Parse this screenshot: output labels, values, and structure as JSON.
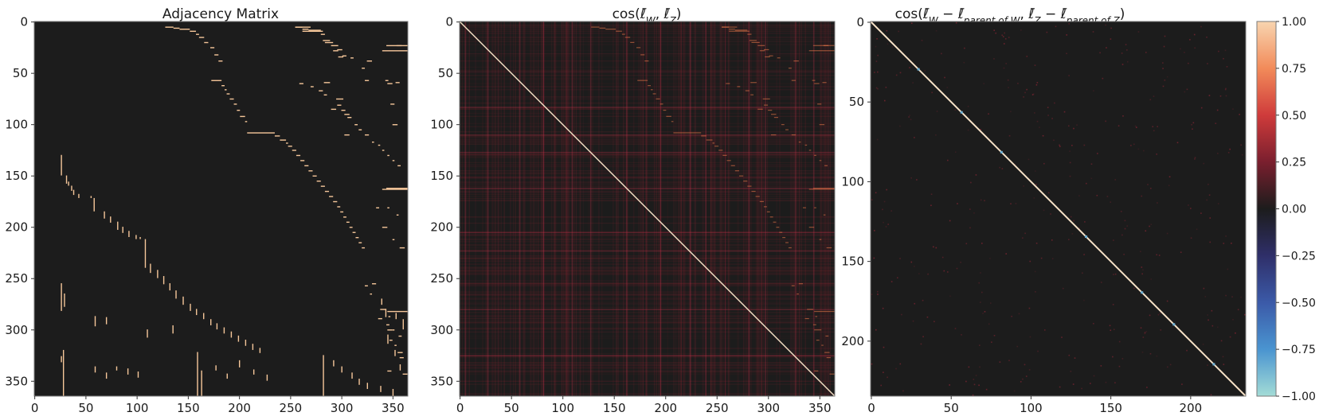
{
  "colors": {
    "background": "#1c1c1c",
    "adjacency_on": "#f6c79a",
    "diagonal": "#f8e3c8",
    "frame": "#7a7a7a"
  },
  "chart_data": [
    {
      "type": "heatmap",
      "title": "Adjacency Matrix",
      "size": 365,
      "x_ticks": [
        0,
        50,
        100,
        150,
        200,
        250,
        300,
        350
      ],
      "y_ticks": [
        0,
        50,
        100,
        150,
        200,
        250,
        300,
        350
      ],
      "values_description": "binary (0/1) adjacency matrix, mostly zeros with staircase bands of ones",
      "segments": [
        [
          5,
          128,
          136
        ],
        [
          6,
          136,
          142
        ],
        [
          7,
          142,
          152
        ],
        [
          9,
          152,
          158
        ],
        [
          12,
          158,
          161
        ],
        [
          15,
          161,
          166
        ],
        [
          20,
          166,
          170
        ],
        [
          25,
          172,
          176
        ],
        [
          32,
          176,
          180
        ],
        [
          38,
          180,
          184
        ],
        [
          5,
          255,
          262
        ],
        [
          7,
          262,
          268
        ],
        [
          8,
          268,
          280
        ],
        [
          12,
          280,
          284
        ],
        [
          20,
          284,
          292
        ],
        [
          28,
          292,
          297
        ],
        [
          34,
          297,
          302
        ],
        [
          57,
          173,
          183
        ],
        [
          62,
          183,
          186
        ],
        [
          66,
          186,
          188
        ],
        [
          70,
          188,
          191
        ],
        [
          75,
          191,
          195
        ],
        [
          80,
          195,
          198
        ],
        [
          86,
          198,
          201
        ],
        [
          92,
          201,
          206
        ],
        [
          97,
          206,
          208
        ],
        [
          108,
          208,
          235
        ],
        [
          111,
          235,
          240
        ],
        [
          115,
          240,
          246
        ],
        [
          118,
          246,
          248
        ],
        [
          121,
          248,
          252
        ],
        [
          125,
          252,
          256
        ],
        [
          130,
          256,
          260
        ],
        [
          135,
          260,
          264
        ],
        [
          140,
          264,
          268
        ],
        [
          145,
          268,
          272
        ],
        [
          150,
          272,
          276
        ],
        [
          155,
          276,
          280
        ],
        [
          160,
          280,
          284
        ],
        [
          165,
          284,
          288
        ],
        [
          170,
          288,
          292
        ],
        [
          175,
          292,
          296
        ],
        [
          180,
          296,
          299
        ],
        [
          185,
          299,
          302
        ],
        [
          190,
          302,
          305
        ],
        [
          195,
          305,
          308
        ],
        [
          200,
          308,
          311
        ],
        [
          205,
          311,
          314
        ],
        [
          210,
          314,
          317
        ],
        [
          215,
          317,
          320
        ],
        [
          220,
          320,
          323
        ],
        [
          59,
          283,
          289
        ],
        [
          75,
          295,
          302
        ],
        [
          85,
          290,
          295
        ],
        [
          90,
          303,
          308
        ],
        [
          110,
          303,
          308
        ],
        [
          28,
          340,
          365
        ],
        [
          163,
          340,
          365
        ],
        [
          60,
          345,
          350
        ],
        [
          80,
          348,
          352
        ],
        [
          100,
          350,
          355
        ],
        [
          255,
          330,
          334
        ],
        [
          280,
          338,
          344
        ],
        [
          300,
          345,
          350
        ],
        [
          322,
          355,
          360
        ]
      ],
      "verticals": [
        [
          26,
          130,
          150
        ],
        [
          31,
          150,
          158
        ],
        [
          33,
          156,
          160
        ],
        [
          36,
          160,
          165
        ],
        [
          38,
          164,
          169
        ],
        [
          43,
          168,
          172
        ],
        [
          55,
          170,
          172
        ],
        [
          58,
          172,
          185
        ],
        [
          68,
          185,
          192
        ],
        [
          74,
          190,
          196
        ],
        [
          81,
          195,
          203
        ],
        [
          86,
          200,
          206
        ],
        [
          92,
          204,
          210
        ],
        [
          99,
          208,
          212
        ],
        [
          103,
          210,
          212
        ],
        [
          108,
          212,
          240
        ],
        [
          113,
          236,
          245
        ],
        [
          120,
          242,
          250
        ],
        [
          126,
          248,
          256
        ],
        [
          132,
          255,
          262
        ],
        [
          138,
          262,
          270
        ],
        [
          145,
          268,
          276
        ],
        [
          152,
          275,
          282
        ],
        [
          158,
          280,
          286
        ],
        [
          165,
          284,
          290
        ],
        [
          172,
          290,
          296
        ],
        [
          178,
          294,
          300
        ],
        [
          185,
          298,
          304
        ],
        [
          192,
          302,
          308
        ],
        [
          199,
          306,
          312
        ],
        [
          206,
          310,
          316
        ],
        [
          213,
          314,
          320
        ],
        [
          220,
          318,
          323
        ],
        [
          26,
          255,
          282
        ],
        [
          29,
          265,
          278
        ],
        [
          59,
          287,
          297
        ],
        [
          70,
          288,
          295
        ],
        [
          110,
          300,
          308
        ],
        [
          135,
          296,
          304
        ],
        [
          28,
          320,
          365
        ],
        [
          26,
          326,
          332
        ],
        [
          59,
          336,
          342
        ],
        [
          70,
          342,
          348
        ],
        [
          80,
          336,
          340
        ],
        [
          91,
          338,
          344
        ],
        [
          101,
          341,
          347
        ],
        [
          159,
          322,
          365
        ],
        [
          163,
          340,
          365
        ],
        [
          177,
          335,
          340
        ],
        [
          188,
          343,
          348
        ],
        [
          200,
          330,
          337
        ],
        [
          214,
          339,
          344
        ],
        [
          227,
          344,
          350
        ],
        [
          282,
          325,
          365
        ],
        [
          292,
          330,
          336
        ],
        [
          300,
          336,
          342
        ],
        [
          310,
          342,
          348
        ],
        [
          317,
          348,
          354
        ],
        [
          325,
          352,
          358
        ],
        [
          338,
          355,
          361
        ],
        [
          350,
          358,
          365
        ],
        [
          360,
          290,
          300
        ],
        [
          345,
          305,
          314
        ],
        [
          352,
          320,
          326
        ],
        [
          357,
          334,
          340
        ],
        [
          343,
          280,
          288
        ],
        [
          353,
          284,
          290
        ],
        [
          339,
          270,
          276
        ]
      ],
      "right_block": [
        [
          255,
          5,
          270
        ],
        [
          262,
          9,
          282
        ],
        [
          282,
          18,
          289
        ],
        [
          290,
          23,
          297
        ],
        [
          296,
          27,
          301
        ],
        [
          301,
          33,
          305
        ],
        [
          309,
          35,
          312
        ],
        [
          344,
          23,
          365
        ],
        [
          354,
          23,
          359
        ],
        [
          325,
          38,
          330
        ],
        [
          320,
          45,
          323
        ],
        [
          323,
          57,
          327
        ],
        [
          343,
          57,
          346
        ],
        [
          353,
          59,
          357
        ],
        [
          259,
          60,
          263
        ],
        [
          270,
          63,
          273
        ],
        [
          278,
          67,
          282
        ],
        [
          283,
          71,
          286
        ],
        [
          296,
          81,
          300
        ],
        [
          300,
          86,
          304
        ],
        [
          306,
          93,
          310
        ],
        [
          313,
          100,
          316
        ],
        [
          317,
          105,
          320
        ],
        [
          323,
          110,
          327
        ],
        [
          330,
          117,
          332
        ],
        [
          336,
          120,
          338
        ],
        [
          340,
          125,
          342
        ],
        [
          345,
          130,
          347
        ],
        [
          350,
          135,
          352
        ],
        [
          355,
          140,
          358
        ],
        [
          344,
          162,
          365
        ],
        [
          334,
          181,
          337
        ],
        [
          345,
          181,
          347
        ],
        [
          354,
          188,
          356
        ],
        [
          340,
          200,
          345
        ],
        [
          350,
          212,
          352
        ],
        [
          357,
          220,
          362
        ],
        [
          323,
          257,
          326
        ],
        [
          328,
          265,
          330
        ],
        [
          345,
          282,
          365
        ],
        [
          346,
          287,
          348
        ],
        [
          336,
          289,
          340
        ],
        [
          344,
          295,
          347
        ],
        [
          350,
          300,
          352
        ],
        [
          356,
          306,
          359
        ],
        [
          347,
          310,
          350
        ],
        [
          352,
          315,
          354
        ],
        [
          357,
          327,
          361
        ],
        [
          345,
          340,
          349
        ],
        [
          360,
          343,
          365
        ]
      ]
    },
    {
      "type": "heatmap",
      "title": "cos(ℓ̄W, ℓ̄Z)",
      "size": 365,
      "x_ticks": [
        0,
        50,
        100,
        150,
        200,
        250,
        300,
        350
      ],
      "y_ticks": [
        0,
        50,
        100,
        150,
        200,
        250,
        300,
        350
      ],
      "diagonal": 1.0,
      "values_description": "cosine similarity matrix, background mostly 0-0.3 with reddish texture, bright diagonal of 1.0",
      "bright_row_bands": [
        83,
        110,
        127,
        162,
        205,
        223,
        280,
        325
      ],
      "bright_col_bands": [
        5,
        27,
        58,
        81,
        109,
        127,
        162,
        195,
        224,
        239,
        281,
        297,
        326,
        344
      ]
    },
    {
      "type": "heatmap",
      "title": "cos(ℓ̄W − ℓ̄parent of W, ℓ̄Z − ℓ̄parent of Z)",
      "size": 235,
      "x_ticks": [
        0,
        50,
        100,
        150,
        200
      ],
      "y_ticks": [
        0,
        50,
        100,
        150,
        200
      ],
      "diagonal": 1.0,
      "values_description": "near-zero off-diagonal with sparse small positive values, diagonal 1.0 with a few bluish cells near 30, 57, 82, 135, 170"
    }
  ],
  "colorbar": {
    "min": -1.0,
    "max": 1.0,
    "tick_labels": [
      "1.00",
      "0.75",
      "0.50",
      "0.25",
      "0.00",
      "−0.25",
      "−0.50",
      "−0.75",
      "−1.00"
    ],
    "stops": [
      "#f8d5b0",
      "#f28b5a",
      "#cf3b3b",
      "#7a1f2e",
      "#1c1c1c",
      "#2f2f69",
      "#3b5aa8",
      "#4a94d0",
      "#a3dcd6"
    ]
  }
}
